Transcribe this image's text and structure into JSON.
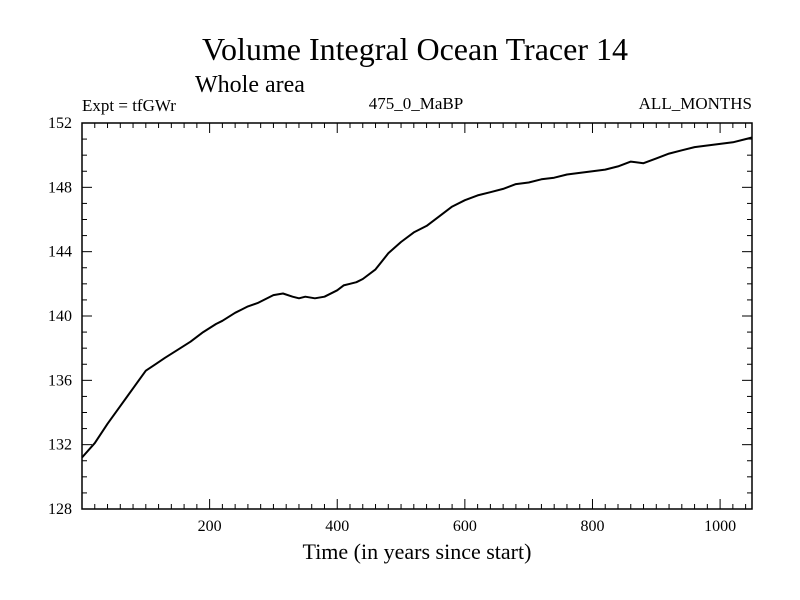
{
  "chart_data": {
    "type": "line",
    "title": "Volume Integral Ocean Tracer 14",
    "subtitle": "Whole area",
    "annotations": {
      "left": "Expt = tfGWr",
      "center": "475_0_MaBP",
      "right": "ALL_MONTHS"
    },
    "xlabel": "Time (in years since start)",
    "ylabel": "",
    "xlim": [
      0,
      1050
    ],
    "ylim": [
      128,
      152
    ],
    "xticks": [
      200,
      400,
      600,
      800,
      1000
    ],
    "yticks": [
      128,
      132,
      136,
      140,
      144,
      148,
      152
    ],
    "xtick_labels": [
      "200",
      "400",
      "600",
      "800",
      "1000"
    ],
    "ytick_labels": [
      "128",
      "132",
      "136",
      "140",
      "144",
      "148",
      "152"
    ],
    "x_minor_step": 20,
    "y_minor_step": 1,
    "grid": false,
    "series": [
      {
        "name": "Volume Integral Ocean Tracer 14",
        "color": "#000000",
        "x": [
          0,
          20,
          40,
          60,
          80,
          100,
          115,
          130,
          150,
          170,
          190,
          210,
          220,
          240,
          250,
          260,
          275,
          300,
          315,
          330,
          340,
          350,
          365,
          380,
          400,
          410,
          420,
          430,
          440,
          460,
          480,
          500,
          520,
          540,
          560,
          580,
          600,
          620,
          640,
          660,
          680,
          700,
          720,
          740,
          760,
          780,
          800,
          820,
          840,
          860,
          880,
          900,
          920,
          940,
          960,
          980,
          1000,
          1020,
          1040,
          1050
        ],
        "values": [
          131.2,
          132.1,
          133.3,
          134.4,
          135.5,
          136.6,
          137.0,
          137.4,
          137.9,
          138.4,
          139.0,
          139.5,
          139.7,
          140.2,
          140.4,
          140.6,
          140.8,
          141.3,
          141.4,
          141.2,
          141.1,
          141.2,
          141.1,
          141.2,
          141.6,
          141.9,
          142.0,
          142.1,
          142.3,
          142.9,
          143.9,
          144.6,
          145.2,
          145.6,
          146.2,
          146.8,
          147.2,
          147.5,
          147.7,
          147.9,
          148.2,
          148.3,
          148.5,
          148.6,
          148.8,
          148.9,
          149.0,
          149.1,
          149.3,
          149.6,
          149.5,
          149.8,
          150.1,
          150.3,
          150.5,
          150.6,
          150.7,
          150.8,
          151.0,
          151.1
        ]
      }
    ]
  }
}
